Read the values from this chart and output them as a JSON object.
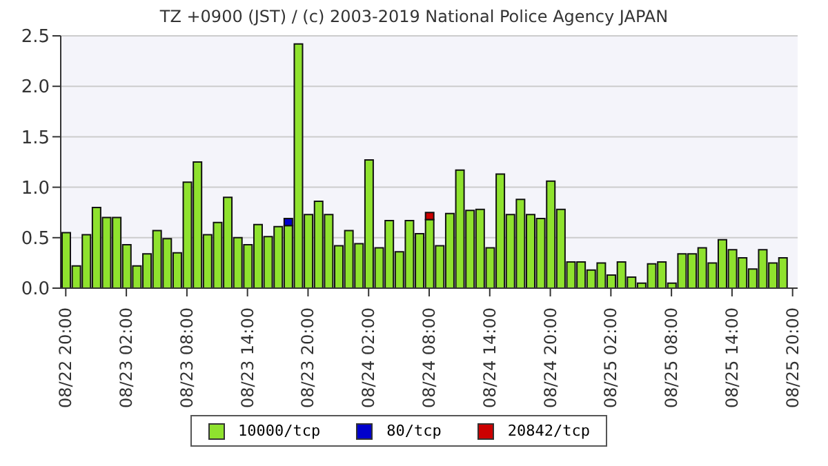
{
  "chart_data": {
    "type": "bar",
    "stacked": true,
    "title": "TZ +0900 (JST) / (c) 2003-2019 National Police Agency JAPAN",
    "x": [
      "--08-22T20:00",
      "--08-22T21:00",
      "--08-22T22:00",
      "--08-22T23:00",
      "--08-23T00:00",
      "--08-23T01:00",
      "--08-23T02:00",
      "--08-23T03:00",
      "--08-23T04:00",
      "--08-23T05:00",
      "--08-23T06:00",
      "--08-23T07:00",
      "--08-23T08:00",
      "--08-23T09:00",
      "--08-23T10:00",
      "--08-23T11:00",
      "--08-23T12:00",
      "--08-23T13:00",
      "--08-23T14:00",
      "--08-23T15:00",
      "--08-23T16:00",
      "--08-23T17:00",
      "--08-23T18:00",
      "--08-23T19:00",
      "--08-23T20:00",
      "--08-23T21:00",
      "--08-23T22:00",
      "--08-23T23:00",
      "--08-24T00:00",
      "--08-24T01:00",
      "--08-24T02:00",
      "--08-24T03:00",
      "--08-24T04:00",
      "--08-24T05:00",
      "--08-24T06:00",
      "--08-24T07:00",
      "--08-24T08:00",
      "--08-24T09:00",
      "--08-24T10:00",
      "--08-24T11:00",
      "--08-24T12:00",
      "--08-24T13:00",
      "--08-24T14:00",
      "--08-24T15:00",
      "--08-24T16:00",
      "--08-24T17:00",
      "--08-24T18:00",
      "--08-24T19:00",
      "--08-24T20:00",
      "--08-24T21:00",
      "--08-24T22:00",
      "--08-24T23:00",
      "--08-25T00:00",
      "--08-25T01:00",
      "--08-25T02:00",
      "--08-25T03:00",
      "--08-25T04:00",
      "--08-25T05:00",
      "--08-25T06:00",
      "--08-25T07:00",
      "--08-25T08:00",
      "--08-25T09:00",
      "--08-25T10:00",
      "--08-25T11:00",
      "--08-25T12:00",
      "--08-25T13:00",
      "--08-25T14:00",
      "--08-25T15:00",
      "--08-25T16:00",
      "--08-25T17:00",
      "--08-25T18:00",
      "--08-25T19:00"
    ],
    "series": [
      {
        "name": "10000/tcp",
        "color": "#8fe22e",
        "values": [
          0.55,
          0.22,
          0.53,
          0.8,
          0.7,
          0.7,
          0.43,
          0.22,
          0.34,
          0.57,
          0.49,
          0.35,
          1.05,
          1.25,
          0.53,
          0.65,
          0.9,
          0.5,
          0.43,
          0.63,
          0.51,
          0.61,
          0.62,
          2.42,
          0.73,
          0.86,
          0.73,
          0.42,
          0.57,
          0.44,
          1.27,
          0.4,
          0.67,
          0.36,
          0.67,
          0.54,
          0.68,
          0.42,
          0.74,
          1.17,
          0.77,
          0.78,
          0.4,
          1.13,
          0.73,
          0.88,
          0.73,
          0.69,
          1.06,
          0.78,
          0.26,
          0.26,
          0.18,
          0.25,
          0.13,
          0.26,
          0.11,
          0.05,
          0.24,
          0.26,
          0.05,
          0.34,
          0.34,
          0.4,
          0.25,
          0.48,
          0.38,
          0.3,
          0.19,
          0.38,
          0.25,
          0.3
        ]
      },
      {
        "name": "80/tcp",
        "color": "#0000cc",
        "values": [
          null,
          null,
          null,
          null,
          null,
          null,
          null,
          null,
          null,
          null,
          null,
          null,
          null,
          null,
          null,
          null,
          null,
          null,
          null,
          null,
          null,
          null,
          0.07,
          null,
          null,
          null,
          null,
          null,
          null,
          null,
          null,
          null,
          null,
          null,
          null,
          null,
          null,
          null,
          null,
          null,
          null,
          null,
          null,
          null,
          null,
          null,
          null,
          null,
          null,
          null,
          null,
          null,
          null,
          null,
          null,
          null,
          null,
          null,
          null,
          null,
          null,
          null,
          null,
          null,
          null,
          null,
          null,
          null,
          null,
          null,
          null,
          null
        ]
      },
      {
        "name": "20842/tcp",
        "color": "#cc0000",
        "values": [
          null,
          null,
          null,
          null,
          null,
          null,
          null,
          null,
          null,
          null,
          null,
          null,
          null,
          null,
          null,
          null,
          null,
          null,
          null,
          null,
          null,
          null,
          null,
          null,
          null,
          null,
          null,
          null,
          null,
          null,
          null,
          null,
          null,
          null,
          null,
          null,
          0.07,
          null,
          null,
          null,
          null,
          null,
          null,
          null,
          null,
          null,
          null,
          null,
          null,
          null,
          null,
          null,
          null,
          null,
          null,
          null,
          null,
          null,
          null,
          null,
          null,
          null,
          null,
          null,
          null,
          null,
          null,
          null,
          null,
          null,
          null,
          null
        ]
      }
    ],
    "xlim": [
      "--08-22T19:30",
      "--08-25T20:30"
    ],
    "xticks": [
      {
        "value": "--08-22T20:00",
        "label": "08/22 20:00"
      },
      {
        "value": "--08-23T02:00",
        "label": "08/23 02:00"
      },
      {
        "value": "--08-23T08:00",
        "label": "08/23 08:00"
      },
      {
        "value": "--08-23T14:00",
        "label": "08/23 14:00"
      },
      {
        "value": "--08-23T20:00",
        "label": "08/23 20:00"
      },
      {
        "value": "--08-24T02:00",
        "label": "08/24 02:00"
      },
      {
        "value": "--08-24T08:00",
        "label": "08/24 08:00"
      },
      {
        "value": "--08-24T14:00",
        "label": "08/24 14:00"
      },
      {
        "value": "--08-24T20:00",
        "label": "08/24 20:00"
      },
      {
        "value": "--08-25T02:00",
        "label": "08/25 02:00"
      },
      {
        "value": "--08-25T08:00",
        "label": "08/25 08:00"
      },
      {
        "value": "--08-25T14:00",
        "label": "08/25 14:00"
      },
      {
        "value": "--08-25T20:00",
        "label": "08/25 20:00"
      }
    ],
    "ylim": [
      0,
      2.5
    ],
    "yticks": [
      {
        "value": 0,
        "label": "0.0"
      },
      {
        "value": 0.5,
        "label": "0.5"
      },
      {
        "value": 1,
        "label": "1.0"
      },
      {
        "value": 1.5,
        "label": "1.5"
      },
      {
        "value": 2,
        "label": "2.0"
      },
      {
        "value": 2.5,
        "label": "2.5"
      }
    ],
    "grid": "y",
    "legend": "bottom"
  }
}
